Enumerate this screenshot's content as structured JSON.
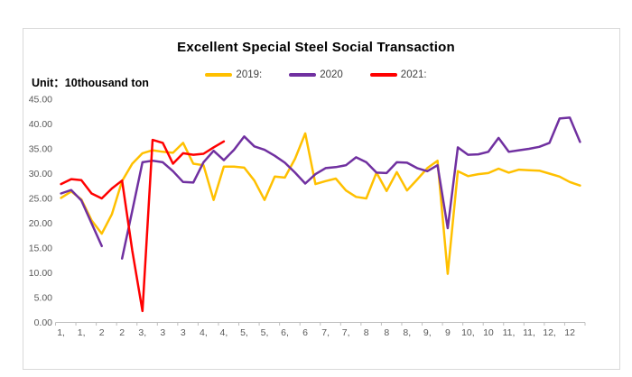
{
  "chart": {
    "title": "Excellent Special Steel Social Transaction",
    "unit_label": "Unit：10thousand ton"
  },
  "chart_data": {
    "type": "line",
    "title": "Excellent Special Steel Social Transaction",
    "ylabel": "10thousand ton",
    "xlabel": "",
    "ylim": [
      0,
      45
    ],
    "grid": false,
    "legend_position": "top-center",
    "y_axis": {
      "min": 0,
      "max": 45,
      "step": 5,
      "tick_labels": [
        "0.00",
        "5.00",
        "10.00",
        "15.00",
        "20.00",
        "25.00",
        "30.00",
        "35.00",
        "40.00",
        "45.00"
      ]
    },
    "x_axis": {
      "labels": [
        "1,",
        "1,",
        "2",
        "2",
        "3,",
        "3",
        "3",
        "4,",
        "4,",
        "5,",
        "5,",
        "6,",
        "6",
        "7,",
        "7,",
        "8",
        "8",
        "8,",
        "9,",
        "9",
        "10,",
        "10",
        "11,",
        "11,",
        "12,",
        "12"
      ],
      "points_per_label": 2,
      "total_points": 52
    },
    "axis_color": "#bfbfbf",
    "tick_label_color": "#595959",
    "series": [
      {
        "name": "2019",
        "legend_label": "2019:",
        "color": "#FFC000",
        "values": [
          25.1,
          26.4,
          24.8,
          20.6,
          17.9,
          21.8,
          28.5,
          32.0,
          34.1,
          34.7,
          34.4,
          34.2,
          36.2,
          32.0,
          31.7,
          24.7,
          31.4,
          31.4,
          31.2,
          28.6,
          24.7,
          29.4,
          29.2,
          33.0,
          38.1,
          27.9,
          28.5,
          29.0,
          26.6,
          25.3,
          25.0,
          30.2,
          26.5,
          30.3,
          26.6,
          28.8,
          31.1,
          32.6,
          9.8,
          30.5,
          29.5,
          29.9,
          30.1,
          31.0,
          30.2,
          30.8,
          30.7,
          30.6,
          30.0,
          29.4,
          28.3,
          27.6
        ]
      },
      {
        "name": "2020",
        "legend_label": "2020",
        "color": "#7030A0",
        "values": [
          26.0,
          26.7,
          24.6,
          20.0,
          15.4,
          null,
          12.9,
          22.5,
          32.3,
          32.6,
          32.3,
          30.5,
          28.3,
          28.2,
          32.3,
          34.6,
          32.7,
          34.8,
          37.5,
          35.5,
          34.8,
          33.6,
          32.2,
          30.2,
          28.0,
          29.9,
          31.1,
          31.3,
          31.7,
          33.3,
          32.3,
          30.2,
          30.1,
          32.3,
          32.2,
          31.1,
          30.5,
          31.7,
          19.0,
          35.3,
          33.8,
          33.9,
          34.4,
          37.2,
          34.4,
          34.7,
          35.0,
          35.4,
          36.2,
          41.1,
          41.3,
          36.4
        ]
      },
      {
        "name": "2021",
        "legend_label": "2021:",
        "color": "#FF0000",
        "values": [
          27.9,
          28.9,
          28.7,
          26.0,
          25.0,
          27.0,
          28.6,
          14.5,
          2.3,
          36.8,
          36.2,
          32.0,
          34.1,
          33.8,
          34.0,
          35.3,
          36.5
        ]
      }
    ]
  }
}
